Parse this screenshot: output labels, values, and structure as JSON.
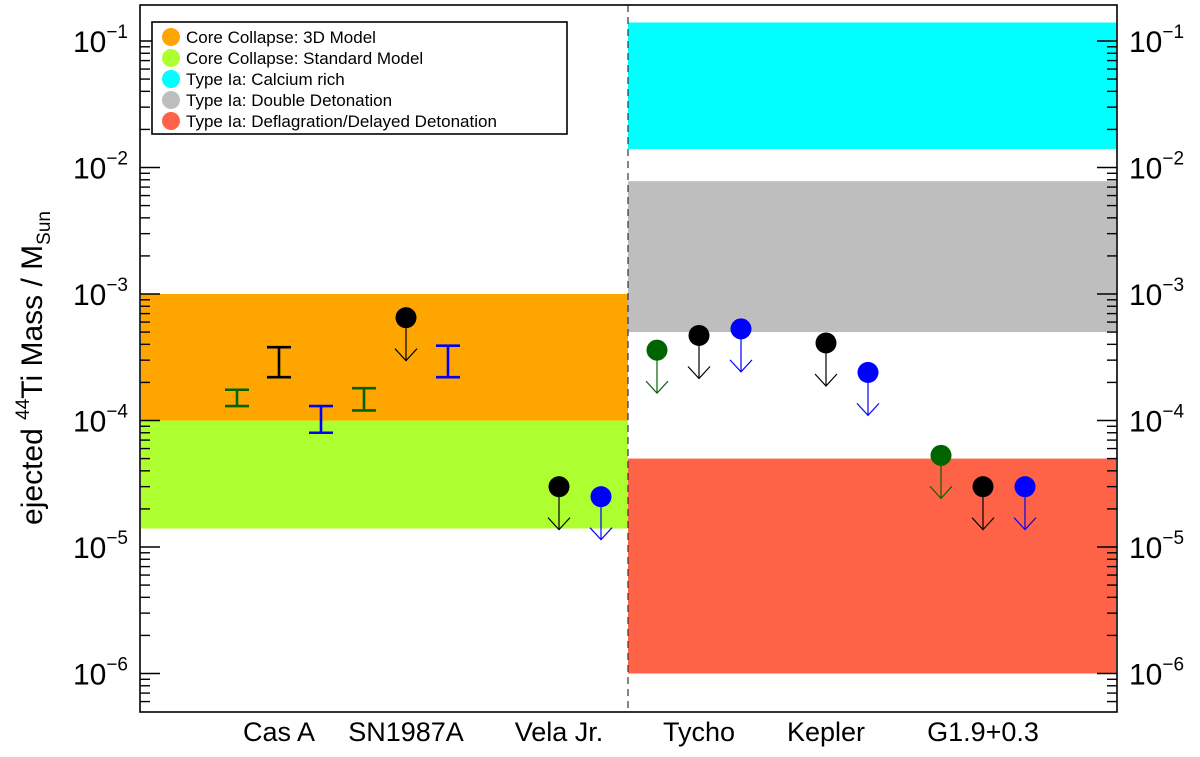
{
  "chart_data": {
    "type": "scatter",
    "title": "",
    "ylabel": {
      "prefix": "ejected ",
      "sup": "44",
      "middle": "Ti Mass /  M",
      "sub": "Sun"
    },
    "yscale": "log",
    "ylim": [
      5e-07,
      0.2
    ],
    "categories": [
      "Cas A",
      "SN1987A",
      "Vela Jr.",
      "Tycho",
      "Kepler",
      "G1.9+0.3"
    ],
    "y_ticks": [
      {
        "value": 1e-06,
        "base": "10",
        "exp": "−6"
      },
      {
        "value": 1e-05,
        "base": "10",
        "exp": "−5"
      },
      {
        "value": 0.0001,
        "base": "10",
        "exp": "−4"
      },
      {
        "value": 0.001,
        "base": "10",
        "exp": "−3"
      },
      {
        "value": 0.01,
        "base": "10",
        "exp": "−2"
      },
      {
        "value": 0.1,
        "base": "10",
        "exp": "−1"
      }
    ],
    "bands": [
      {
        "name": "Core Collapse: 3D Model",
        "color": "#ffa500",
        "panel": "core-collapse",
        "range": [
          0.0001,
          0.001
        ]
      },
      {
        "name": "Core Collapse: Standard Model",
        "color": "#adff2f",
        "panel": "core-collapse",
        "range": [
          1.4e-05,
          0.0001
        ]
      },
      {
        "name": "Type Ia: Calcium rich",
        "color": "#00ffff",
        "panel": "type-ia",
        "range": [
          0.014,
          0.14
        ]
      },
      {
        "name": "Type Ia: Double Detonation",
        "color": "#bebebe",
        "panel": "type-ia",
        "range": [
          0.0005,
          0.0078
        ]
      },
      {
        "name": "Type Ia: Deflagration/Delayed Detonation",
        "color": "#ff6347",
        "panel": "type-ia",
        "range": [
          1e-06,
          5e-05
        ]
      }
    ],
    "measurements": [
      {
        "source": "Cas A",
        "kind": "error-bar",
        "color": "#006400",
        "slot": 0,
        "low": 0.00013,
        "high": 0.000175
      },
      {
        "source": "Cas A",
        "kind": "error-bar",
        "color": "#000000",
        "slot": 1,
        "low": 0.00022,
        "high": 0.00038
      },
      {
        "source": "Cas A",
        "kind": "error-bar",
        "color": "#0000ff",
        "slot": 2,
        "low": 8e-05,
        "high": 0.00013
      },
      {
        "source": "SN1987A",
        "kind": "error-bar",
        "color": "#006400",
        "slot": 0,
        "low": 0.00012,
        "high": 0.00018
      },
      {
        "source": "SN1987A",
        "kind": "upper-limit",
        "color": "#000000",
        "slot": 1,
        "value": 0.00065
      },
      {
        "source": "SN1987A",
        "kind": "error-bar",
        "color": "#0000ff",
        "slot": 2,
        "low": 0.00022,
        "high": 0.00039
      },
      {
        "source": "Vela Jr.",
        "kind": "upper-limit",
        "color": "#000000",
        "slot": 1,
        "value": 3e-05
      },
      {
        "source": "Vela Jr.",
        "kind": "upper-limit",
        "color": "#0000ff",
        "slot": 2,
        "value": 2.5e-05
      },
      {
        "source": "Tycho",
        "kind": "upper-limit",
        "color": "#006400",
        "slot": 0,
        "value": 0.00036
      },
      {
        "source": "Tycho",
        "kind": "upper-limit",
        "color": "#000000",
        "slot": 1,
        "value": 0.00047
      },
      {
        "source": "Tycho",
        "kind": "upper-limit",
        "color": "#0000ff",
        "slot": 2,
        "value": 0.00053
      },
      {
        "source": "Kepler",
        "kind": "upper-limit",
        "color": "#000000",
        "slot": 1,
        "value": 0.00041
      },
      {
        "source": "Kepler",
        "kind": "upper-limit",
        "color": "#0000ff",
        "slot": 2,
        "value": 0.00024
      },
      {
        "source": "G1.9+0.3",
        "kind": "upper-limit",
        "color": "#006400",
        "slot": 0,
        "value": 5.3e-05
      },
      {
        "source": "G1.9+0.3",
        "kind": "upper-limit",
        "color": "#000000",
        "slot": 1,
        "value": 3e-05
      },
      {
        "source": "G1.9+0.3",
        "kind": "upper-limit",
        "color": "#0000ff",
        "slot": 2,
        "value": 3e-05
      }
    ],
    "legend_position": "top-left",
    "grid": false
  }
}
